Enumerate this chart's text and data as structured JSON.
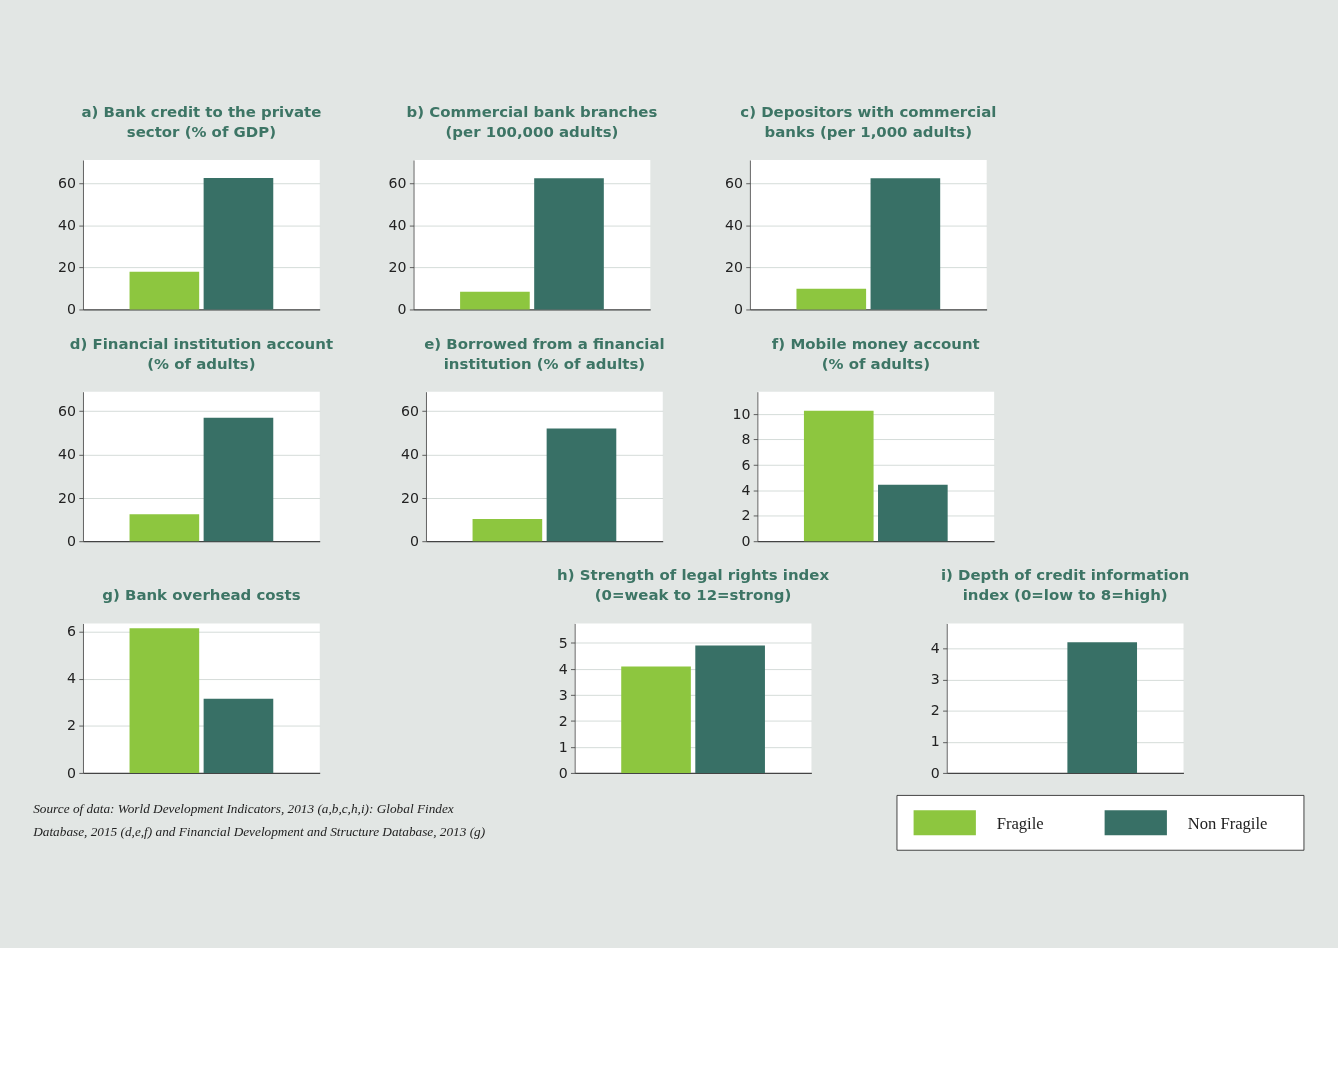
{
  "chart_data": [
    {
      "type": "bar",
      "title": "a) Bank credit to the private sector (% of GDP)",
      "categories": [
        null
      ],
      "ylim": [
        0,
        71
      ],
      "yticks": [
        0,
        20,
        40,
        60
      ],
      "grid": "y",
      "series": [
        {
          "color": "#8dc63f",
          "values": [
            18
          ]
        },
        {
          "color": "#387066",
          "values": [
            62.5
          ]
        }
      ]
    },
    {
      "type": "bar",
      "title": "b) Commercial bank branches (per 100,000 adults)",
      "categories": [
        null
      ],
      "ylim": [
        0,
        71
      ],
      "yticks": [
        0,
        20,
        40,
        60
      ],
      "grid": "y",
      "series": [
        {
          "color": "#8dc63f",
          "values": [
            8.4
          ]
        },
        {
          "color": "#387066",
          "values": [
            62.4
          ]
        }
      ]
    },
    {
      "type": "bar",
      "title": "c) Depositors with commercial banks (per 1,000 adults)",
      "categories": [
        null
      ],
      "ylim": [
        0,
        71
      ],
      "yticks": [
        0,
        20,
        40,
        60
      ],
      "grid": "y",
      "series": [
        {
          "color": "#8dc63f",
          "values": [
            9.9
          ]
        },
        {
          "color": "#387066",
          "values": [
            62.4
          ]
        }
      ]
    },
    {
      "type": "bar",
      "title": "d) Financial institution account (% of adults)",
      "categories": [
        null
      ],
      "ylim": [
        0,
        69
      ],
      "yticks": [
        0,
        20,
        40,
        60
      ],
      "grid": "y",
      "series": [
        {
          "color": "#8dc63f",
          "values": [
            12.5
          ]
        },
        {
          "color": "#387066",
          "values": [
            57
          ]
        }
      ]
    },
    {
      "type": "bar",
      "title": "e) Borrowed from a financial institution (% of adults)",
      "categories": [
        null
      ],
      "ylim": [
        0,
        69
      ],
      "yticks": [
        0,
        20,
        40,
        60
      ],
      "grid": "y",
      "series": [
        {
          "color": "#8dc63f",
          "values": [
            10.3
          ]
        },
        {
          "color": "#387066",
          "values": [
            52
          ]
        }
      ]
    },
    {
      "type": "bar",
      "title": "f) Mobile money account (% of adults)",
      "categories": [
        null
      ],
      "ylim": [
        0,
        11.75
      ],
      "yticks": [
        0,
        2,
        4,
        6,
        8,
        10
      ],
      "grid": "y",
      "series": [
        {
          "color": "#8dc63f",
          "values": [
            10.25
          ]
        },
        {
          "color": "#387066",
          "values": [
            4.45
          ]
        }
      ]
    },
    {
      "type": "bar",
      "title": "g) Bank overhead costs",
      "categories": [
        null
      ],
      "ylim": [
        0,
        6.35
      ],
      "yticks": [
        0,
        2,
        4,
        6
      ],
      "grid": "y",
      "series": [
        {
          "color": "#8dc63f",
          "values": [
            6.15
          ]
        },
        {
          "color": "#387066",
          "values": [
            3.15
          ]
        }
      ],
      "annotations": [
        "Source of data: World Development Indicators, 2013 (a,b,c,h,i): Global Findex Database, 2015 (d,e,f) and  Financial Development and Structure Database, 2013 (g)"
      ]
    },
    {
      "type": "bar",
      "title": "h) Strength of legal rights index (0=weak to 12=strong)",
      "categories": [
        null
      ],
      "ylim": [
        0,
        5.75
      ],
      "yticks": [
        0,
        1,
        2,
        3,
        4,
        5
      ],
      "grid": "y",
      "series": [
        {
          "color": "#8dc63f",
          "values": [
            4.1
          ]
        },
        {
          "color": "#387066",
          "values": [
            4.9
          ]
        }
      ]
    },
    {
      "type": "bar",
      "title": "i) Depth of credit information index (0=low to 8=high)",
      "categories": [
        null
      ],
      "ylim": [
        0,
        4.8
      ],
      "yticks": [
        0,
        1,
        2,
        3,
        4
      ],
      "grid": "y",
      "legend": "bottom right",
      "series": [
        {
          "name": "Fragile",
          "color": "#8dc63f",
          "values": [
            0
          ]
        },
        {
          "name": "Non Fragile",
          "color": "#387066",
          "values": [
            4.2
          ]
        }
      ]
    }
  ]
}
